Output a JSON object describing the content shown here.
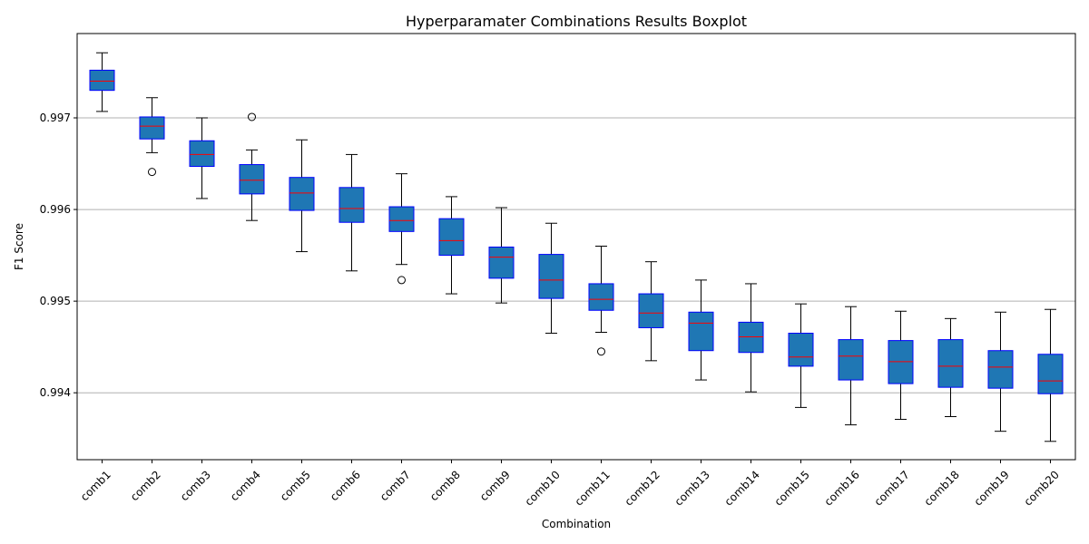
{
  "chart_data": {
    "type": "boxplot",
    "title": "Hyperparamater Combinations Results Boxplot",
    "xlabel": "Combination",
    "ylabel": "F1 Score",
    "ylim": [
      0.99327,
      0.99792
    ],
    "yticks": [
      0.994,
      0.995,
      0.996,
      0.997
    ],
    "ytick_labels": [
      "0.994",
      "0.995",
      "0.996",
      "0.997"
    ],
    "grid": "y",
    "colors": {
      "box_fill": "#1f77b4",
      "box_edge": "#0000ff",
      "median": "#ff0000",
      "whisker": "#000000",
      "grid": "#b0b0b0"
    },
    "categories": [
      "comb1",
      "comb2",
      "comb3",
      "comb4",
      "comb5",
      "comb6",
      "comb7",
      "comb8",
      "comb9",
      "comb10",
      "comb11",
      "comb12",
      "comb13",
      "comb14",
      "comb15",
      "comb16",
      "comb17",
      "comb18",
      "comb19",
      "comb20"
    ],
    "boxes": [
      {
        "whislo": 0.99707,
        "q1": 0.9973,
        "med": 0.9974,
        "q3": 0.99752,
        "whishi": 0.99771,
        "fliers": []
      },
      {
        "whislo": 0.99662,
        "q1": 0.99677,
        "med": 0.99691,
        "q3": 0.99701,
        "whishi": 0.99722,
        "fliers": [
          0.99641
        ]
      },
      {
        "whislo": 0.99612,
        "q1": 0.99647,
        "med": 0.9966,
        "q3": 0.99675,
        "whishi": 0.997,
        "fliers": []
      },
      {
        "whislo": 0.99588,
        "q1": 0.99617,
        "med": 0.99632,
        "q3": 0.99649,
        "whishi": 0.99665,
        "fliers": [
          0.99701
        ]
      },
      {
        "whislo": 0.99554,
        "q1": 0.99599,
        "med": 0.99618,
        "q3": 0.99635,
        "whishi": 0.99676,
        "fliers": []
      },
      {
        "whislo": 0.99533,
        "q1": 0.99586,
        "med": 0.99601,
        "q3": 0.99624,
        "whishi": 0.9966,
        "fliers": []
      },
      {
        "whislo": 0.9954,
        "q1": 0.99576,
        "med": 0.99588,
        "q3": 0.99603,
        "whishi": 0.99639,
        "fliers": [
          0.99523
        ]
      },
      {
        "whislo": 0.99508,
        "q1": 0.9955,
        "med": 0.99566,
        "q3": 0.9959,
        "whishi": 0.99614,
        "fliers": []
      },
      {
        "whislo": 0.99498,
        "q1": 0.99525,
        "med": 0.99548,
        "q3": 0.99559,
        "whishi": 0.99602,
        "fliers": []
      },
      {
        "whislo": 0.99465,
        "q1": 0.99503,
        "med": 0.99523,
        "q3": 0.99551,
        "whishi": 0.99585,
        "fliers": []
      },
      {
        "whislo": 0.99466,
        "q1": 0.9949,
        "med": 0.99502,
        "q3": 0.99519,
        "whishi": 0.9956,
        "fliers": [
          0.99445
        ]
      },
      {
        "whislo": 0.99435,
        "q1": 0.99471,
        "med": 0.99487,
        "q3": 0.99508,
        "whishi": 0.99543,
        "fliers": []
      },
      {
        "whislo": 0.99414,
        "q1": 0.99446,
        "med": 0.99476,
        "q3": 0.99488,
        "whishi": 0.99523,
        "fliers": []
      },
      {
        "whislo": 0.99401,
        "q1": 0.99444,
        "med": 0.99461,
        "q3": 0.99477,
        "whishi": 0.99519,
        "fliers": []
      },
      {
        "whislo": 0.99384,
        "q1": 0.99429,
        "med": 0.99439,
        "q3": 0.99465,
        "whishi": 0.99497,
        "fliers": []
      },
      {
        "whislo": 0.99365,
        "q1": 0.99414,
        "med": 0.9944,
        "q3": 0.99458,
        "whishi": 0.99494,
        "fliers": []
      },
      {
        "whislo": 0.99371,
        "q1": 0.9941,
        "med": 0.99434,
        "q3": 0.99457,
        "whishi": 0.99489,
        "fliers": []
      },
      {
        "whislo": 0.99374,
        "q1": 0.99406,
        "med": 0.99429,
        "q3": 0.99458,
        "whishi": 0.99481,
        "fliers": []
      },
      {
        "whislo": 0.99358,
        "q1": 0.99405,
        "med": 0.99428,
        "q3": 0.99446,
        "whishi": 0.99488,
        "fliers": []
      },
      {
        "whislo": 0.99347,
        "q1": 0.99399,
        "med": 0.99413,
        "q3": 0.99442,
        "whishi": 0.99491,
        "fliers": []
      }
    ]
  }
}
